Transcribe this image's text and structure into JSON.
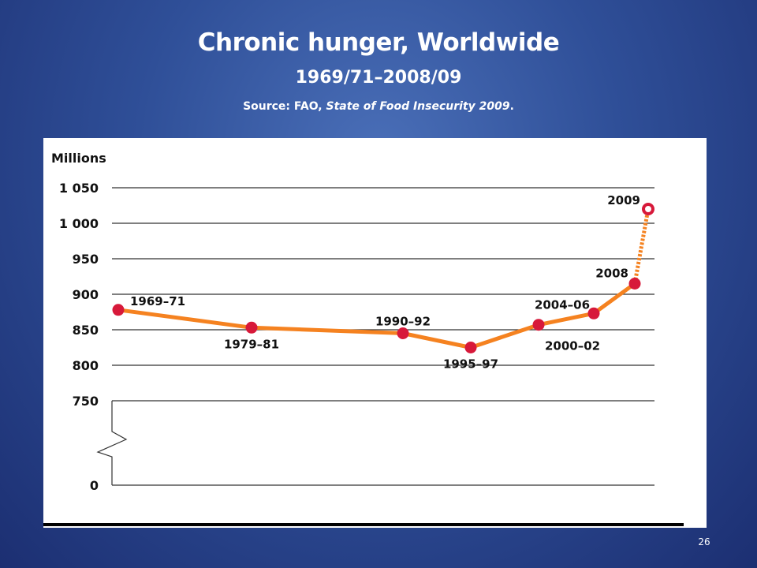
{
  "slide": {
    "title": "Chronic hunger, Worldwide",
    "subtitle": "1969/71–2008/09",
    "source_prefix": "Source: FAO, ",
    "source_italic": "State of Food Insecurity 2009",
    "source_suffix": ".",
    "page_number": "26"
  },
  "chart_data": {
    "type": "line",
    "ylabel": "Millions",
    "ytick_labels": [
      "1 050",
      "1 000",
      "950",
      "900",
      "850",
      "800",
      "750",
      "0"
    ],
    "ytick_values": [
      1050,
      1000,
      950,
      900,
      850,
      800,
      750,
      0
    ],
    "axis_break": "between 0 and 750",
    "grid": true,
    "points": [
      {
        "label": "1969–71",
        "value": 878
      },
      {
        "label": "1979–81",
        "value": 853
      },
      {
        "label": "1990–92",
        "value": 845
      },
      {
        "label": "1995–97",
        "value": 825
      },
      {
        "label": "2000–02",
        "value": 857
      },
      {
        "label": "2004–06",
        "value": 873
      },
      {
        "label": "2008",
        "value": 915
      },
      {
        "label": "2009",
        "value": 1020,
        "projected": true
      }
    ],
    "colors": {
      "line": "#f58220",
      "marker": "#d7193a",
      "grid": "#333333",
      "axis_text": "#111111"
    }
  }
}
